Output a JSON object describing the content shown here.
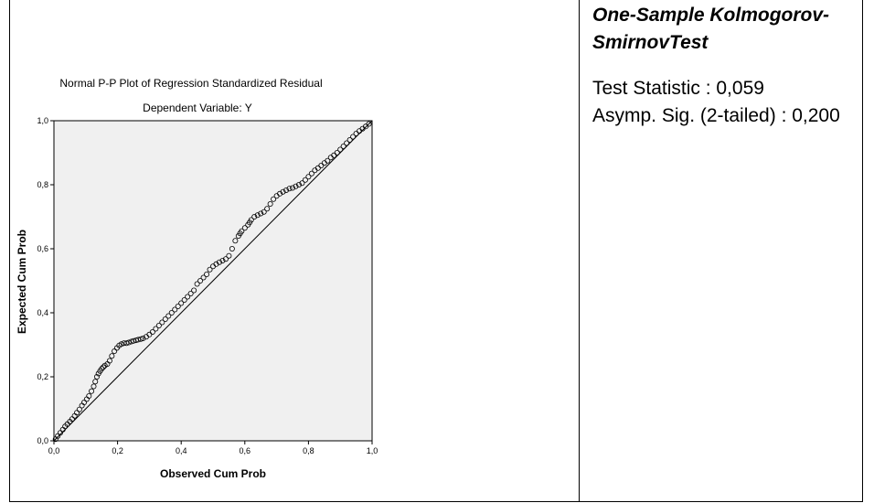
{
  "chart_data": {
    "type": "scatter",
    "title": "Normal P-P Plot of Regression Standardized Residual",
    "subtitle": "Dependent Variable: Y",
    "xlabel": "Observed Cum Prob",
    "ylabel": "Expected Cum Prob",
    "xlim": [
      0,
      1
    ],
    "ylim": [
      0,
      1
    ],
    "xticks": [
      "0,0",
      "0,2",
      "0,4",
      "0,6",
      "0,8",
      "1,0"
    ],
    "yticks": [
      "0,0",
      "0,2",
      "0,4",
      "0,6",
      "0,8",
      "1,0"
    ],
    "plot_background": "#f0f0f0",
    "reference_line": [
      [
        0,
        0
      ],
      [
        1,
        1
      ]
    ],
    "points_x": [
      0.005,
      0.012,
      0.02,
      0.028,
      0.035,
      0.042,
      0.05,
      0.057,
      0.065,
      0.072,
      0.08,
      0.088,
      0.095,
      0.103,
      0.11,
      0.118,
      0.125,
      0.13,
      0.135,
      0.14,
      0.145,
      0.15,
      0.155,
      0.16,
      0.168,
      0.175,
      0.182,
      0.19,
      0.198,
      0.205,
      0.212,
      0.22,
      0.228,
      0.235,
      0.243,
      0.25,
      0.258,
      0.265,
      0.273,
      0.28,
      0.29,
      0.3,
      0.31,
      0.32,
      0.33,
      0.34,
      0.35,
      0.36,
      0.37,
      0.38,
      0.39,
      0.4,
      0.41,
      0.42,
      0.43,
      0.44,
      0.45,
      0.46,
      0.47,
      0.48,
      0.49,
      0.5,
      0.51,
      0.52,
      0.53,
      0.54,
      0.55,
      0.56,
      0.57,
      0.58,
      0.585,
      0.59,
      0.6,
      0.61,
      0.615,
      0.62,
      0.63,
      0.64,
      0.65,
      0.66,
      0.67,
      0.68,
      0.69,
      0.7,
      0.71,
      0.72,
      0.73,
      0.74,
      0.75,
      0.76,
      0.77,
      0.78,
      0.79,
      0.8,
      0.81,
      0.82,
      0.83,
      0.84,
      0.85,
      0.86,
      0.87,
      0.88,
      0.89,
      0.9,
      0.91,
      0.92,
      0.93,
      0.94,
      0.95,
      0.96,
      0.97,
      0.98,
      0.99
    ],
    "points_y": [
      0.005,
      0.015,
      0.025,
      0.035,
      0.045,
      0.052,
      0.06,
      0.068,
      0.078,
      0.088,
      0.098,
      0.11,
      0.12,
      0.13,
      0.14,
      0.155,
      0.17,
      0.185,
      0.2,
      0.21,
      0.218,
      0.225,
      0.23,
      0.235,
      0.24,
      0.25,
      0.265,
      0.28,
      0.29,
      0.298,
      0.302,
      0.305,
      0.305,
      0.307,
      0.31,
      0.312,
      0.314,
      0.316,
      0.318,
      0.32,
      0.325,
      0.332,
      0.34,
      0.35,
      0.36,
      0.37,
      0.38,
      0.39,
      0.4,
      0.41,
      0.42,
      0.43,
      0.44,
      0.45,
      0.46,
      0.47,
      0.49,
      0.5,
      0.51,
      0.52,
      0.535,
      0.545,
      0.552,
      0.558,
      0.563,
      0.568,
      0.578,
      0.6,
      0.625,
      0.64,
      0.648,
      0.655,
      0.665,
      0.675,
      0.682,
      0.69,
      0.7,
      0.705,
      0.71,
      0.715,
      0.725,
      0.74,
      0.755,
      0.765,
      0.772,
      0.778,
      0.783,
      0.788,
      0.79,
      0.795,
      0.8,
      0.805,
      0.815,
      0.825,
      0.835,
      0.845,
      0.852,
      0.86,
      0.868,
      0.875,
      0.885,
      0.892,
      0.9,
      0.91,
      0.92,
      0.93,
      0.94,
      0.95,
      0.96,
      0.968,
      0.975,
      0.982,
      0.99
    ]
  },
  "panel": {
    "title": "One-Sample Kolmogorov-SmirnovTest",
    "stat_line": "Test Statistic : 0,059",
    "sig_line": "Asymp. Sig. (2-tailed) : 0,200"
  }
}
